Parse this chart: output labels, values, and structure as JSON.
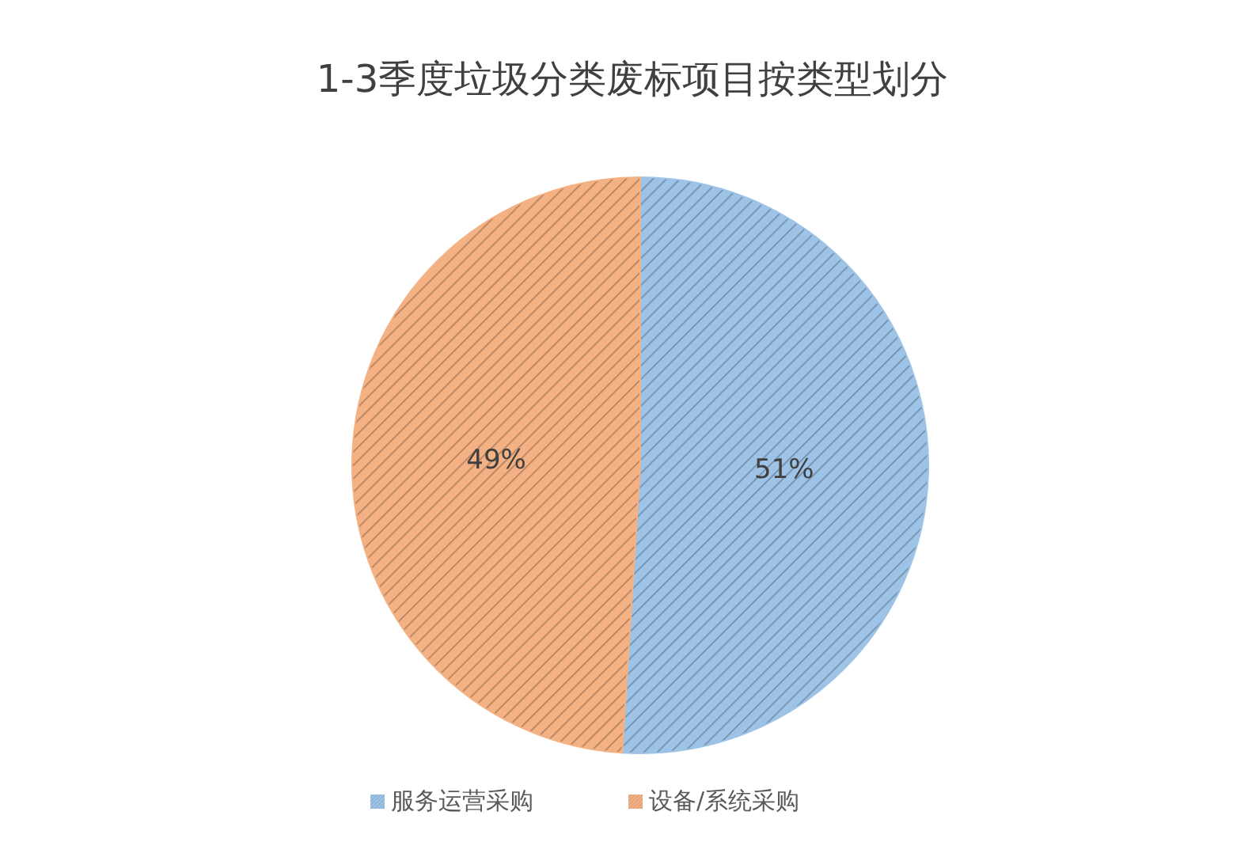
{
  "chart_data": {
    "type": "pie",
    "title": "1-3季度垃圾分类废标项目按类型划分",
    "categories": [
      "服务运营采购",
      "设备/系统采购"
    ],
    "values": [
      51,
      49
    ],
    "colors": [
      "#9dc3e6",
      "#f4b183"
    ],
    "value_labels": [
      "51%",
      "49%"
    ],
    "legend": "bottom"
  }
}
